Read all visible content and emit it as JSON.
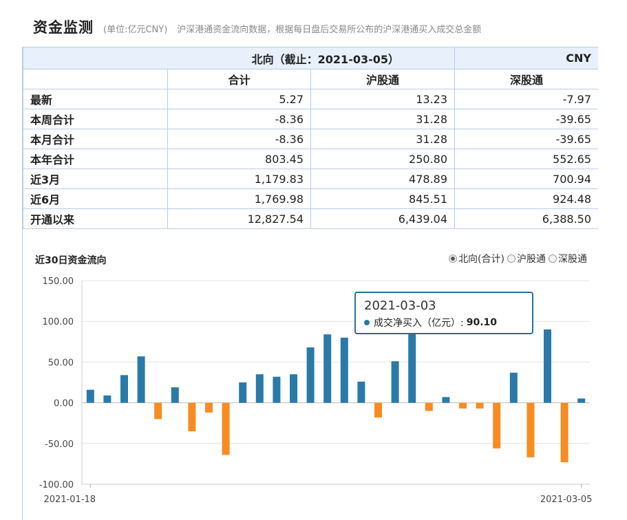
{
  "header": {
    "title": "资金监测",
    "unit": "(单位:亿元CNY)",
    "description": "沪深港通资金流向数据，根据每日盘后交易所公布的沪深港通买入成交总金额"
  },
  "table": {
    "direction_title": "北向（截止：2021-03-05）",
    "currency": "CNY",
    "columns": [
      "合计",
      "沪股通",
      "深股通"
    ],
    "rows": [
      {
        "label": "最新",
        "values": [
          "5.27",
          "13.23",
          "-7.97"
        ]
      },
      {
        "label": "本周合计",
        "values": [
          "-8.36",
          "31.28",
          "-39.65"
        ]
      },
      {
        "label": "本月合计",
        "values": [
          "-8.36",
          "31.28",
          "-39.65"
        ]
      },
      {
        "label": "本年合计",
        "values": [
          "803.45",
          "250.80",
          "552.65"
        ]
      },
      {
        "label": "近3月",
        "values": [
          "1,179.83",
          "478.89",
          "700.94"
        ]
      },
      {
        "label": "近6月",
        "values": [
          "1,769.98",
          "845.51",
          "924.48"
        ]
      },
      {
        "label": "开通以来",
        "values": [
          "12,827.54",
          "6,439.04",
          "6,388.50"
        ]
      }
    ]
  },
  "chart_section": {
    "title": "近30日资金流向",
    "options": [
      {
        "label": "北向(合计)",
        "checked": true
      },
      {
        "label": "沪股通",
        "checked": false
      },
      {
        "label": "深股通",
        "checked": false
      }
    ]
  },
  "tooltip": {
    "date": "2021-03-03",
    "series_label": "成交净买入（亿元）:",
    "value": "90.10"
  },
  "chart_data": {
    "type": "bar",
    "ylim": [
      -100,
      150
    ],
    "yticks": [
      "150.00",
      "100.00",
      "50.00",
      "0.00",
      "-50.00",
      "-100.00"
    ],
    "ytick_values": [
      150,
      100,
      50,
      0,
      -50,
      -100
    ],
    "xtick_labels": [
      "2021-01-18",
      "2021-03-05"
    ],
    "positive_color": "#2a7aa8",
    "negative_color": "#f78d20",
    "grid": true,
    "values": [
      16,
      9,
      34,
      57,
      -20,
      19,
      -35,
      -12,
      -64,
      25,
      35,
      32,
      35,
      68,
      84,
      80,
      26,
      -18,
      51,
      90.1,
      -10,
      7,
      -7,
      -7,
      -56,
      37,
      -67,
      90.1,
      -73,
      5.27
    ]
  }
}
